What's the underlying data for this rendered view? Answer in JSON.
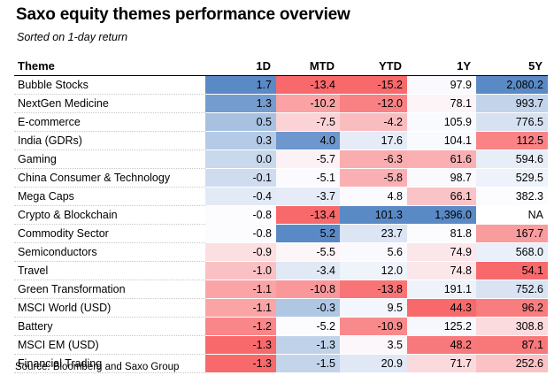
{
  "title": "Saxo equity themes performance overview",
  "subtitle": "Sorted on 1-day return",
  "source": "Source: Bloomberg and Saxo Group",
  "colors": {
    "negative": "#f8696b",
    "positive": "#5a8ac6",
    "neutral": "#fcfcff"
  },
  "chart_data": {
    "type": "table",
    "title": "Saxo equity themes performance overview",
    "subtitle": "Sorted on 1-day return",
    "columns": [
      "Theme",
      "1D",
      "MTD",
      "YTD",
      "1Y",
      "5Y"
    ],
    "rows": [
      {
        "theme": "Bubble Stocks",
        "values": [
          "1.7",
          "-13.4",
          "-15.2",
          "97.9",
          "2,080.2"
        ]
      },
      {
        "theme": "NextGen Medicine",
        "values": [
          "1.3",
          "-10.2",
          "-12.0",
          "78.1",
          "993.7"
        ]
      },
      {
        "theme": "E-commerce",
        "values": [
          "0.5",
          "-7.5",
          "-4.2",
          "105.9",
          "776.5"
        ]
      },
      {
        "theme": "India (GDRs)",
        "values": [
          "0.3",
          "4.0",
          "17.6",
          "104.1",
          "112.5"
        ]
      },
      {
        "theme": "Gaming",
        "values": [
          "0.0",
          "-5.7",
          "-6.3",
          "61.6",
          "594.6"
        ]
      },
      {
        "theme": "China Consumer & Technology",
        "values": [
          "-0.1",
          "-5.1",
          "-5.8",
          "98.7",
          "529.5"
        ]
      },
      {
        "theme": "Mega Caps",
        "values": [
          "-0.4",
          "-3.7",
          "4.8",
          "66.1",
          "382.3"
        ]
      },
      {
        "theme": "Crypto & Blockchain",
        "values": [
          "-0.8",
          "-13.4",
          "101.3",
          "1,396.0",
          "NA"
        ]
      },
      {
        "theme": "Commodity Sector",
        "values": [
          "-0.8",
          "5.2",
          "23.7",
          "81.8",
          "167.7"
        ]
      },
      {
        "theme": "Semiconductors",
        "values": [
          "-0.9",
          "-5.5",
          "5.6",
          "74.9",
          "568.0"
        ]
      },
      {
        "theme": "Travel",
        "values": [
          "-1.0",
          "-3.4",
          "12.0",
          "74.8",
          "54.1"
        ]
      },
      {
        "theme": "Green Transformation",
        "values": [
          "-1.1",
          "-10.8",
          "-13.8",
          "191.1",
          "752.6"
        ]
      },
      {
        "theme": "MSCI World (USD)",
        "values": [
          "-1.1",
          "-0.3",
          "9.5",
          "44.3",
          "96.2"
        ]
      },
      {
        "theme": "Battery",
        "values": [
          "-1.2",
          "-5.2",
          "-10.9",
          "125.2",
          "308.8"
        ]
      },
      {
        "theme": "MSCI EM (USD)",
        "values": [
          "-1.3",
          "-1.3",
          "3.5",
          "48.2",
          "87.1"
        ]
      },
      {
        "theme": "Financial Trading",
        "values": [
          "-1.3",
          "-1.5",
          "20.9",
          "71.7",
          "252.6"
        ]
      }
    ]
  }
}
